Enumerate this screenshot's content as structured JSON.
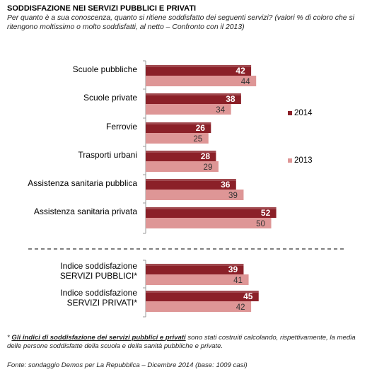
{
  "title": "SODDISFAZIONE NEI SERVIZI PUBBLICI E PRIVATI",
  "subtitle": "Per quanto è a sua conoscenza, quanto si ritiene soddisfatto dei seguenti servizi? (valori % di coloro che si ritengono moltissimo o molto soddisfatti, al netto – Confronto con il 2013)",
  "footnote": {
    "marker": "* ",
    "underlined": "Gli indici di soddisfazione dei servizi pubblici e privati",
    "rest": " sono stati costruiti calcolando, rispettivamente, la media delle persone soddisfatte della scuola e della sanità pubbliche e private."
  },
  "source": "Fonte: sondaggio Demos per La Repubblica – Dicembre 2014 (base: 1009 casi)",
  "colors": {
    "s2014": "#8B2028",
    "s2013": "#DE9696",
    "value2014": "#ffffff",
    "value2013": "#333333"
  },
  "chart_data": {
    "type": "bar",
    "orientation": "horizontal",
    "categories": [
      [
        "Scuole pubbliche"
      ],
      [
        "Scuole private"
      ],
      [
        "Ferrovie"
      ],
      [
        "Trasporti urbani"
      ],
      [
        "Assistenza sanitaria pubblica"
      ],
      [
        "Assistenza sanitaria privata"
      ],
      [
        "Indice soddisfazione",
        "SERVIZI PUBBLICI*"
      ],
      [
        "Indice soddisfazione",
        "SERVIZI PRIVATI*"
      ]
    ],
    "series": [
      {
        "name": "2014",
        "values": [
          42,
          38,
          26,
          28,
          36,
          52,
          39,
          45
        ]
      },
      {
        "name": "2013",
        "values": [
          44,
          34,
          25,
          29,
          39,
          50,
          41,
          42
        ]
      }
    ],
    "separator_after_index": 5
  }
}
